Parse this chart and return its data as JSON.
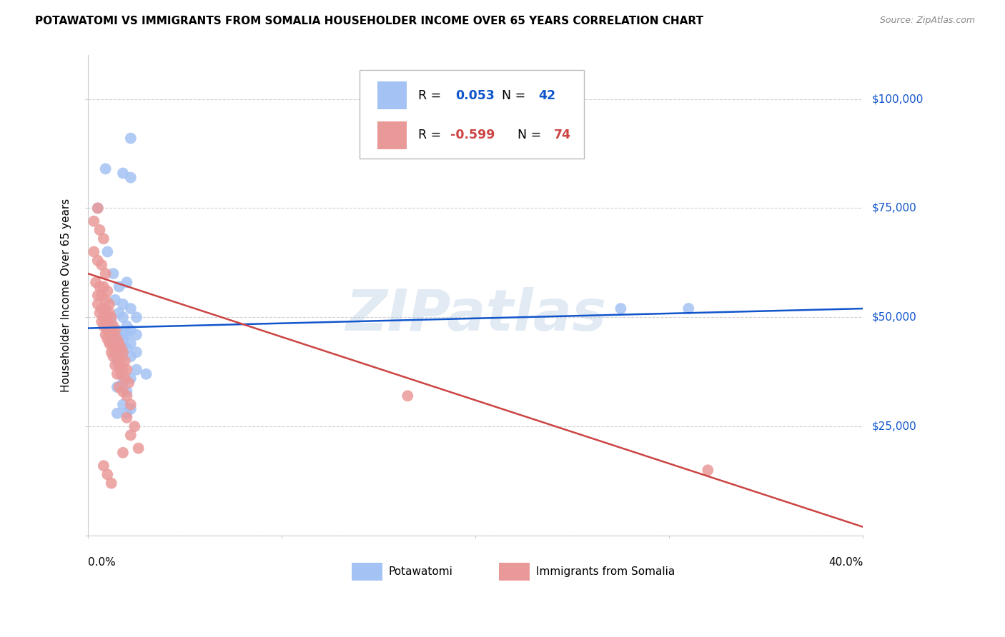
{
  "title": "POTAWATOMI VS IMMIGRANTS FROM SOMALIA HOUSEHOLDER INCOME OVER 65 YEARS CORRELATION CHART",
  "source": "Source: ZipAtlas.com",
  "ylabel": "Householder Income Over 65 years",
  "xlim": [
    0.0,
    0.4
  ],
  "ylim": [
    0,
    110000
  ],
  "yticks": [
    0,
    25000,
    50000,
    75000,
    100000
  ],
  "xticks": [
    0.0,
    0.1,
    0.2,
    0.3,
    0.4
  ],
  "legend_blue_r": "0.053",
  "legend_blue_n": "42",
  "legend_pink_r": "-0.599",
  "legend_pink_n": "74",
  "legend_label_blue": "Potawatomi",
  "legend_label_pink": "Immigrants from Somalia",
  "blue_color": "#a4c2f4",
  "pink_color": "#ea9999",
  "line_blue_color": "#1155cc",
  "line_pink_color": "#cc4444",
  "watermark": "ZIPatlas",
  "background_color": "#ffffff",
  "blue_points_x": [
    0.022,
    0.009,
    0.018,
    0.022,
    0.005,
    0.01,
    0.013,
    0.016,
    0.02,
    0.014,
    0.018,
    0.022,
    0.016,
    0.025,
    0.018,
    0.012,
    0.02,
    0.015,
    0.022,
    0.018,
    0.025,
    0.02,
    0.018,
    0.022,
    0.015,
    0.02,
    0.025,
    0.018,
    0.022,
    0.015,
    0.025,
    0.03,
    0.022,
    0.018,
    0.015,
    0.02,
    0.018,
    0.022,
    0.015,
    0.02,
    0.275,
    0.31
  ],
  "blue_points_y": [
    91000,
    84000,
    83000,
    82000,
    75000,
    65000,
    60000,
    57000,
    58000,
    54000,
    53000,
    52000,
    51000,
    50000,
    50000,
    49000,
    48000,
    47000,
    47000,
    46000,
    46000,
    46000,
    45000,
    44000,
    44000,
    43000,
    42000,
    42000,
    41000,
    40000,
    38000,
    37000,
    36000,
    35000,
    34000,
    33000,
    30000,
    29000,
    28000,
    28000,
    52000,
    52000
  ],
  "pink_points_x": [
    0.003,
    0.005,
    0.006,
    0.008,
    0.003,
    0.005,
    0.007,
    0.009,
    0.004,
    0.006,
    0.008,
    0.01,
    0.005,
    0.007,
    0.009,
    0.011,
    0.005,
    0.007,
    0.009,
    0.011,
    0.006,
    0.008,
    0.01,
    0.012,
    0.007,
    0.009,
    0.011,
    0.013,
    0.008,
    0.01,
    0.012,
    0.014,
    0.009,
    0.011,
    0.013,
    0.015,
    0.01,
    0.012,
    0.014,
    0.016,
    0.011,
    0.013,
    0.015,
    0.017,
    0.012,
    0.014,
    0.016,
    0.018,
    0.013,
    0.015,
    0.017,
    0.019,
    0.014,
    0.016,
    0.018,
    0.02,
    0.015,
    0.017,
    0.019,
    0.021,
    0.016,
    0.018,
    0.02,
    0.022,
    0.02,
    0.024,
    0.022,
    0.026,
    0.018,
    0.008,
    0.01,
    0.012,
    0.165,
    0.32
  ],
  "pink_points_y": [
    72000,
    75000,
    70000,
    68000,
    65000,
    63000,
    62000,
    60000,
    58000,
    57000,
    57000,
    56000,
    55000,
    55000,
    54000,
    53000,
    53000,
    52000,
    52000,
    51000,
    51000,
    50000,
    50000,
    50000,
    49000,
    49000,
    48000,
    48000,
    48000,
    47000,
    47000,
    47000,
    46000,
    46000,
    46000,
    45000,
    45000,
    44000,
    44000,
    44000,
    44000,
    43000,
    43000,
    43000,
    42000,
    42000,
    42000,
    42000,
    41000,
    41000,
    40000,
    40000,
    39000,
    39000,
    38000,
    38000,
    37000,
    37000,
    36000,
    35000,
    34000,
    33000,
    32000,
    30000,
    27000,
    25000,
    23000,
    20000,
    19000,
    16000,
    14000,
    12000,
    32000,
    15000
  ],
  "blue_line_x": [
    0.0,
    0.4
  ],
  "blue_line_y": [
    47500,
    52000
  ],
  "pink_line_x": [
    0.0,
    0.4
  ],
  "pink_line_y": [
    60000,
    2000
  ]
}
